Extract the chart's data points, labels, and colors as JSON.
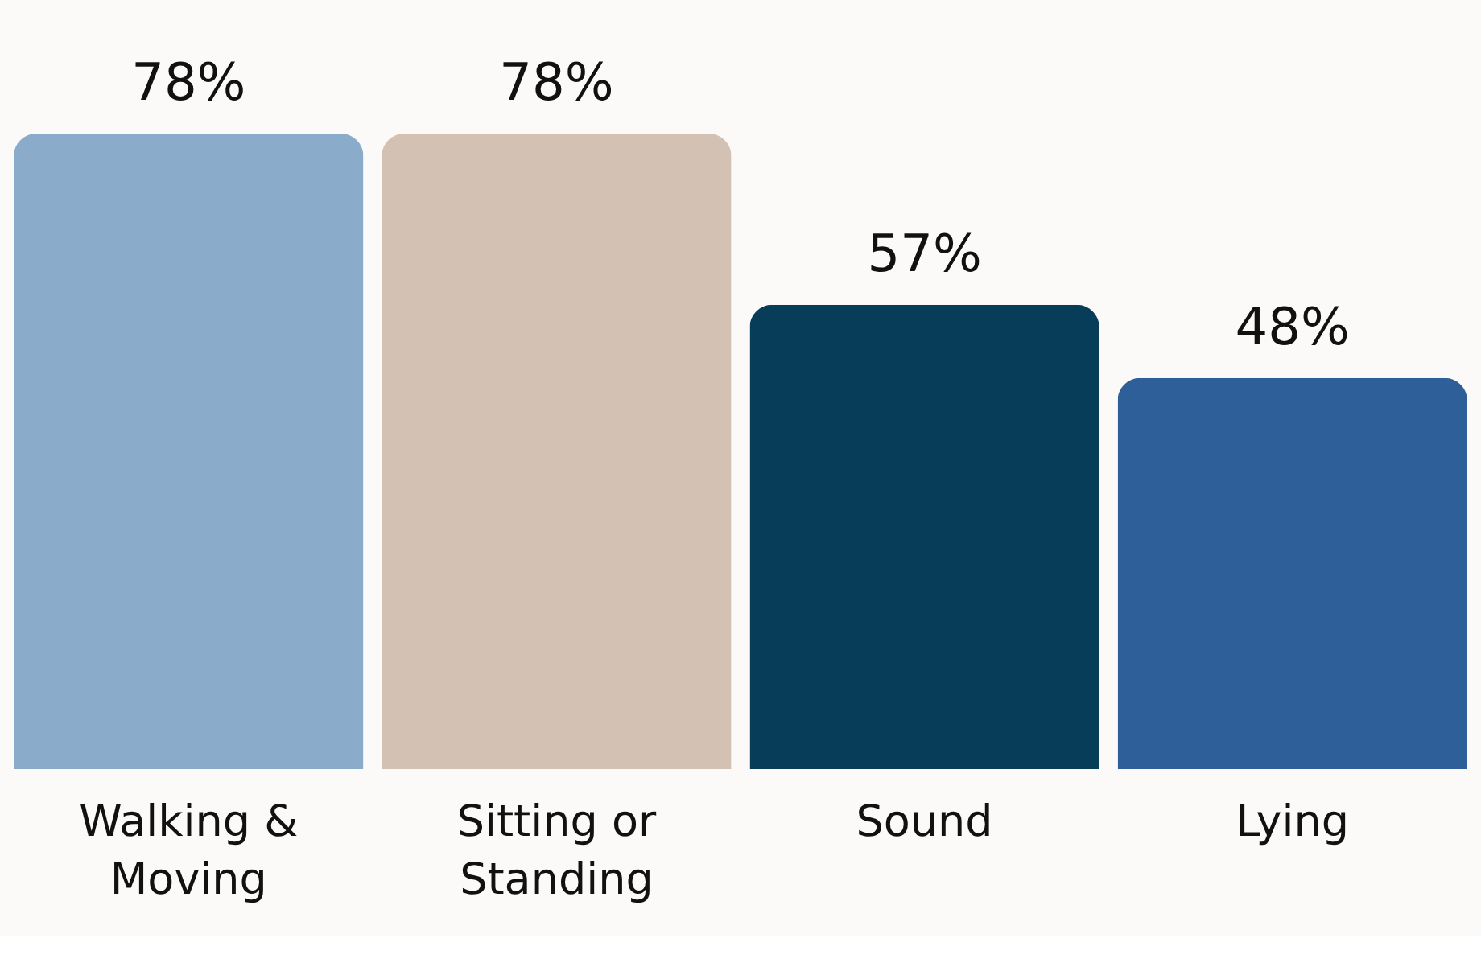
{
  "chart_data": {
    "type": "bar",
    "categories": [
      "Walking &\nMoving",
      "Sitting or\nStanding",
      "Sound",
      "Lying"
    ],
    "values": [
      78,
      78,
      57,
      48
    ],
    "colors": [
      "#8aabca",
      "#d3c1b4",
      "#073d58",
      "#2e5f98"
    ],
    "value_labels": [
      "78%",
      "78%",
      "57%",
      "48%"
    ],
    "data_labels": false
  }
}
